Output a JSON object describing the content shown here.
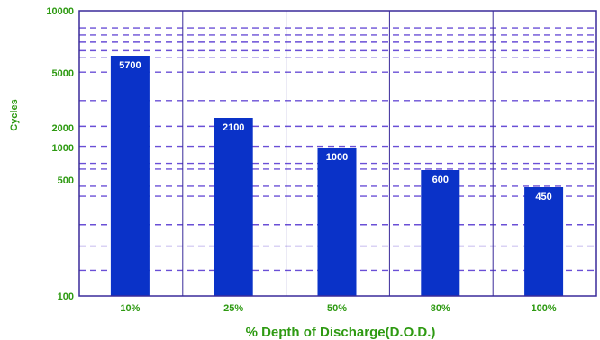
{
  "chart_data": {
    "type": "bar",
    "categories": [
      "10%",
      "25%",
      "50%",
      "80%",
      "100%"
    ],
    "values": [
      5700,
      2100,
      1000,
      600,
      450
    ],
    "xlabel": "% Depth of Discharge(D.O.D.)",
    "ylabel": "Cycles",
    "y_ticks": [
      {
        "label": "10000",
        "value": 10000
      },
      {
        "label": "5000",
        "value": 5000
      },
      {
        "label": "2000",
        "value": 2000
      },
      {
        "label": "1000",
        "value": 1000
      },
      {
        "label": "500",
        "value": 500
      },
      {
        "label": "100",
        "value": 100
      }
    ],
    "ylim": [
      100,
      10000
    ],
    "grid": true,
    "legend": "none"
  },
  "colors": {
    "bar": "#0a32c8",
    "grid": "#6a4fd6",
    "axis": "#3a2a9a",
    "text": "#2e9a12",
    "bar_label": "#ffffff"
  }
}
